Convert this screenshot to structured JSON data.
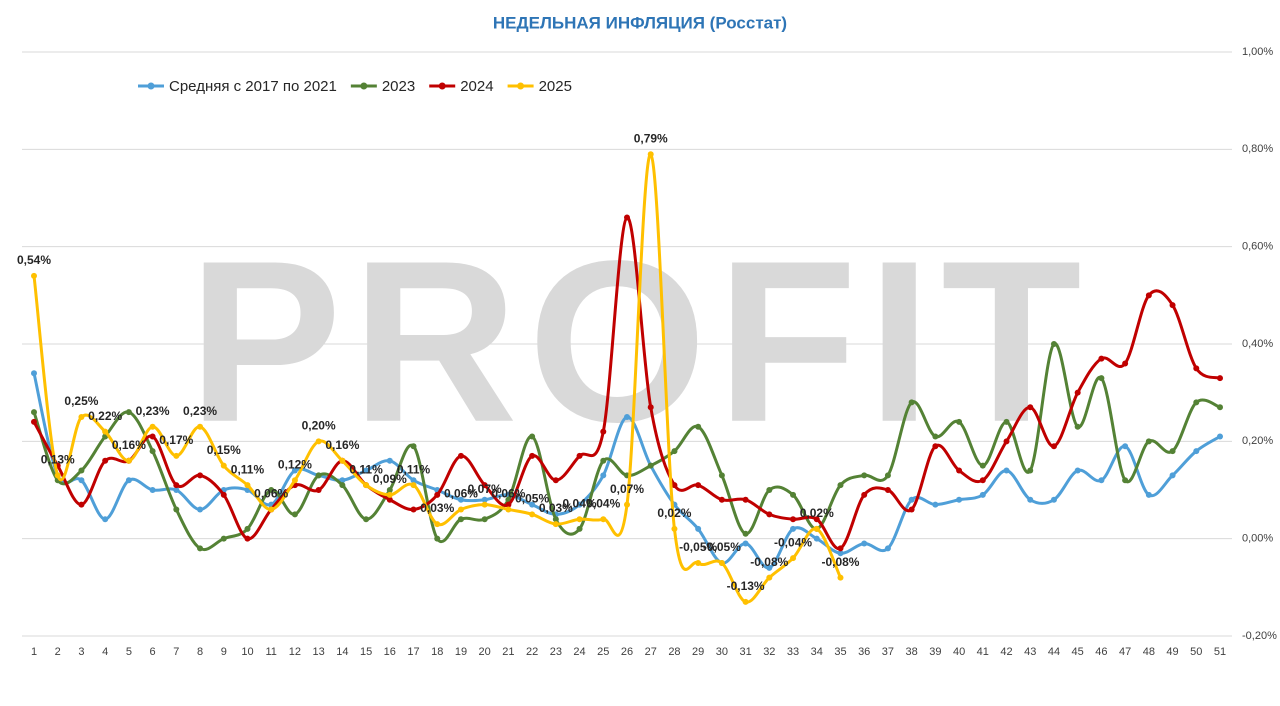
{
  "chart_data": {
    "type": "line",
    "title": "НЕДЕЛЬНАЯ ИНФЛЯЦИЯ (Росстат)",
    "watermark": "PROFIT",
    "categories": [
      "1",
      "2",
      "3",
      "4",
      "5",
      "6",
      "7",
      "8",
      "9",
      "10",
      "11",
      "12",
      "13",
      "14",
      "15",
      "16",
      "17",
      "18",
      "19",
      "20",
      "21",
      "22",
      "23",
      "24",
      "25",
      "26",
      "27",
      "28",
      "29",
      "30",
      "31",
      "32",
      "33",
      "34",
      "35",
      "36",
      "37",
      "38",
      "39",
      "40",
      "41",
      "42",
      "43",
      "44",
      "45",
      "46",
      "47",
      "48",
      "49",
      "50",
      "51"
    ],
    "ylim": [
      -0.2,
      1.0
    ],
    "yticks": [
      {
        "value": -0.2,
        "label": "-0,20%"
      },
      {
        "value": 0,
        "label": "0,00%"
      },
      {
        "value": 0.2,
        "label": "0,20%"
      },
      {
        "value": 0.4,
        "label": "0,40%"
      },
      {
        "value": 0.6,
        "label": "0,60%"
      },
      {
        "value": 0.8,
        "label": "0,80%"
      },
      {
        "value": 1.0,
        "label": "1,00%"
      }
    ],
    "grid": true,
    "legend": "top-left",
    "series": [
      {
        "name": "Средняя с 2017 по 2021",
        "color": "#4f9fd8",
        "values": [
          0.34,
          0.13,
          0.12,
          0.04,
          0.12,
          0.1,
          0.1,
          0.06,
          0.1,
          0.1,
          0.07,
          0.14,
          0.13,
          0.12,
          0.14,
          0.16,
          0.12,
          0.1,
          0.08,
          0.08,
          0.09,
          0.07,
          0.05,
          0.07,
          0.13,
          0.25,
          0.15,
          0.07,
          0.02,
          -0.05,
          -0.01,
          -0.06,
          0.02,
          0.0,
          -0.03,
          -0.01,
          -0.02,
          0.08,
          0.07,
          0.08,
          0.09,
          0.14,
          0.08,
          0.08,
          0.14,
          0.12,
          0.19,
          0.09,
          0.13,
          0.18,
          0.21
        ]
      },
      {
        "name": "2023",
        "color": "#548235",
        "values": [
          0.26,
          0.12,
          0.14,
          0.21,
          0.26,
          0.18,
          0.06,
          -0.02,
          0.0,
          0.02,
          0.1,
          0.05,
          0.13,
          0.11,
          0.04,
          0.1,
          0.19,
          0.0,
          0.04,
          0.04,
          0.08,
          0.21,
          0.04,
          0.02,
          0.16,
          0.13,
          0.15,
          0.18,
          0.23,
          0.13,
          0.01,
          0.1,
          0.09,
          0.02,
          0.11,
          0.13,
          0.13,
          0.28,
          0.21,
          0.24,
          0.15,
          0.24,
          0.14,
          0.4,
          0.23,
          0.33,
          0.12,
          0.2,
          0.18,
          0.28,
          0.27
        ]
      },
      {
        "name": "2024",
        "color": "#c00000",
        "values": [
          0.24,
          0.15,
          0.07,
          0.16,
          0.16,
          0.21,
          0.11,
          0.13,
          0.09,
          0.0,
          0.06,
          0.11,
          0.1,
          0.16,
          0.11,
          0.08,
          0.06,
          0.09,
          0.17,
          0.11,
          0.07,
          0.17,
          0.12,
          0.17,
          0.22,
          0.66,
          0.27,
          0.11,
          0.11,
          0.08,
          0.08,
          0.05,
          0.04,
          0.04,
          -0.02,
          0.09,
          0.1,
          0.06,
          0.19,
          0.14,
          0.12,
          0.2,
          0.27,
          0.19,
          0.3,
          0.37,
          0.36,
          0.5,
          0.48,
          0.35,
          0.33
        ]
      },
      {
        "name": "2025",
        "color": "#ffc000",
        "values": [
          0.54,
          0.13,
          0.25,
          0.22,
          0.16,
          0.23,
          0.17,
          0.23,
          0.15,
          0.11,
          0.06,
          0.12,
          0.2,
          0.16,
          0.11,
          0.09,
          0.11,
          0.03,
          0.06,
          0.07,
          0.06,
          0.05,
          0.03,
          0.04,
          0.04,
          0.07,
          0.79,
          0.02,
          -0.05,
          -0.05,
          -0.13,
          -0.08,
          -0.04,
          0.02,
          -0.08,
          null,
          null,
          null,
          null,
          null,
          null,
          null,
          null,
          null,
          null,
          null,
          null,
          null,
          null,
          null,
          null
        ],
        "value_labels": [
          "0,54%",
          "0,13%",
          "0,25%",
          "0,22%",
          "0,16%",
          "0,23%",
          "0,17%",
          "0,23%",
          "0,15%",
          "0,11%",
          "0,06%",
          "0,12%",
          "0,20%",
          "0,16%",
          "0,11%",
          "0,09%",
          "0,11%",
          "0,03%",
          "0,06%",
          "0,07%",
          "0,06%",
          "0,05%",
          "0,03%",
          "0,04%",
          "0,04%",
          "0,07%",
          "0,79%",
          "0,02%",
          "-0,05%",
          "-0,05%",
          "-0,13%",
          "-0,08%",
          "-0,04%",
          "0,02%",
          "-0,08%",
          null,
          null,
          null,
          null,
          null,
          null,
          null,
          null,
          null,
          null,
          null,
          null,
          null,
          null,
          null,
          null
        ]
      }
    ]
  }
}
